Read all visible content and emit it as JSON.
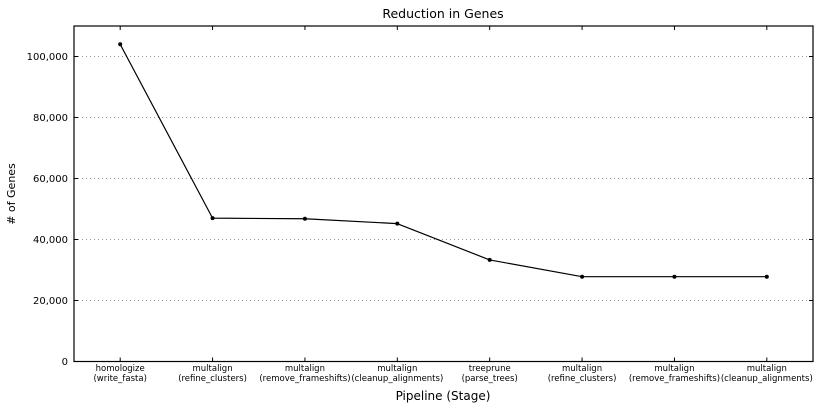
{
  "chart_data": {
    "type": "line",
    "title": "Reduction in Genes",
    "xlabel": "Pipeline (Stage)",
    "ylabel": "# of Genes",
    "categories": [
      [
        "homologize",
        "(write_fasta)"
      ],
      [
        "multalign",
        "(refine_clusters)"
      ],
      [
        "multalign",
        "(remove_frameshifts)"
      ],
      [
        "multalign",
        "(cleanup_alignments)"
      ],
      [
        "treeprune",
        "(parse_trees)"
      ],
      [
        "multalign",
        "(refine_clusters)"
      ],
      [
        "multalign",
        "(remove_frameshifts)"
      ],
      [
        "multalign",
        "(cleanup_alignments)"
      ]
    ],
    "values": [
      104000,
      47000,
      46800,
      45200,
      33300,
      27800,
      27800,
      27800
    ],
    "ylim": [
      0,
      110000
    ],
    "yticks": [
      0,
      20000,
      40000,
      60000,
      80000,
      100000
    ],
    "ytick_labels": [
      "0",
      "20,000",
      "40,000",
      "60,000",
      "80,000",
      "100,000"
    ],
    "legend": "none",
    "grid": "horizontal-dotted",
    "line_color": "#000000",
    "marker": "dot",
    "marker_color": "#000000",
    "grid_color": "#999999",
    "axis_color": "#000000",
    "background_color": "#ffffff"
  }
}
